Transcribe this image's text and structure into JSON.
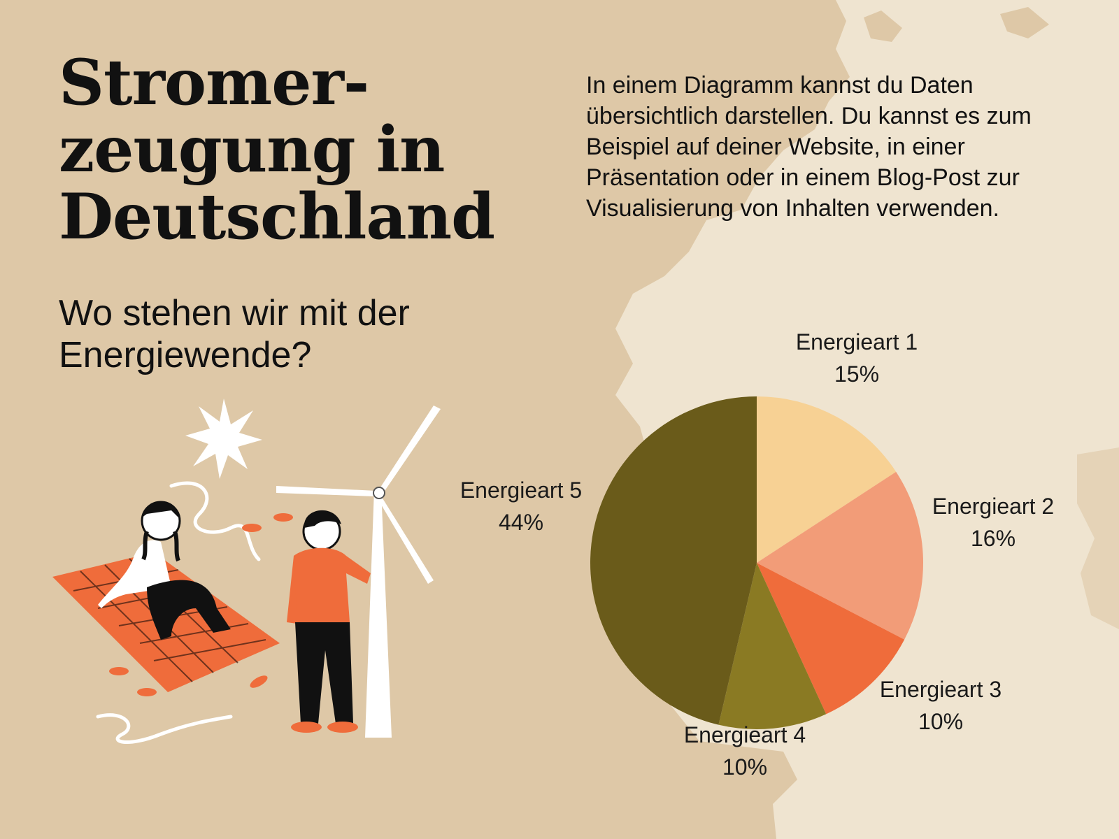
{
  "title_lines": [
    "Stromer-",
    "zeugung in",
    "Deutschland"
  ],
  "subtitle": "Wo stehen wir mit der Energiewende?",
  "intro": "In einem Diagramm kannst du Daten übersichtlich darstellen. Du kannst es zum Beispiel auf deiner Website, in einer Präsentation oder in einem Blog-Post zur Visualisierung von Inhalten verwenden.",
  "colors": {
    "background": "#dec8a7",
    "map": "#efe4d0",
    "accent_orange": "#ef6c3b"
  },
  "illustration_icons": [
    "sun-icon",
    "wind-turbine-icon",
    "person-sitting-icon",
    "person-standing-icon",
    "blanket-icon"
  ],
  "chart_data": {
    "type": "pie",
    "title": "",
    "slices": [
      {
        "label": "Energieart 1",
        "value": 15,
        "display": "15%",
        "color": "#f7d194"
      },
      {
        "label": "Energieart 2",
        "value": 16,
        "display": "16%",
        "color": "#f29c78"
      },
      {
        "label": "Energieart 3",
        "value": 10,
        "display": "10%",
        "color": "#ef6c3b"
      },
      {
        "label": "Energieart 4",
        "value": 10,
        "display": "10%",
        "color": "#8a7a23"
      },
      {
        "label": "Energieart 5",
        "value": 44,
        "display": "44%",
        "color": "#6a5b1a"
      }
    ],
    "start_angle_deg": 0,
    "direction": "clockwise"
  }
}
